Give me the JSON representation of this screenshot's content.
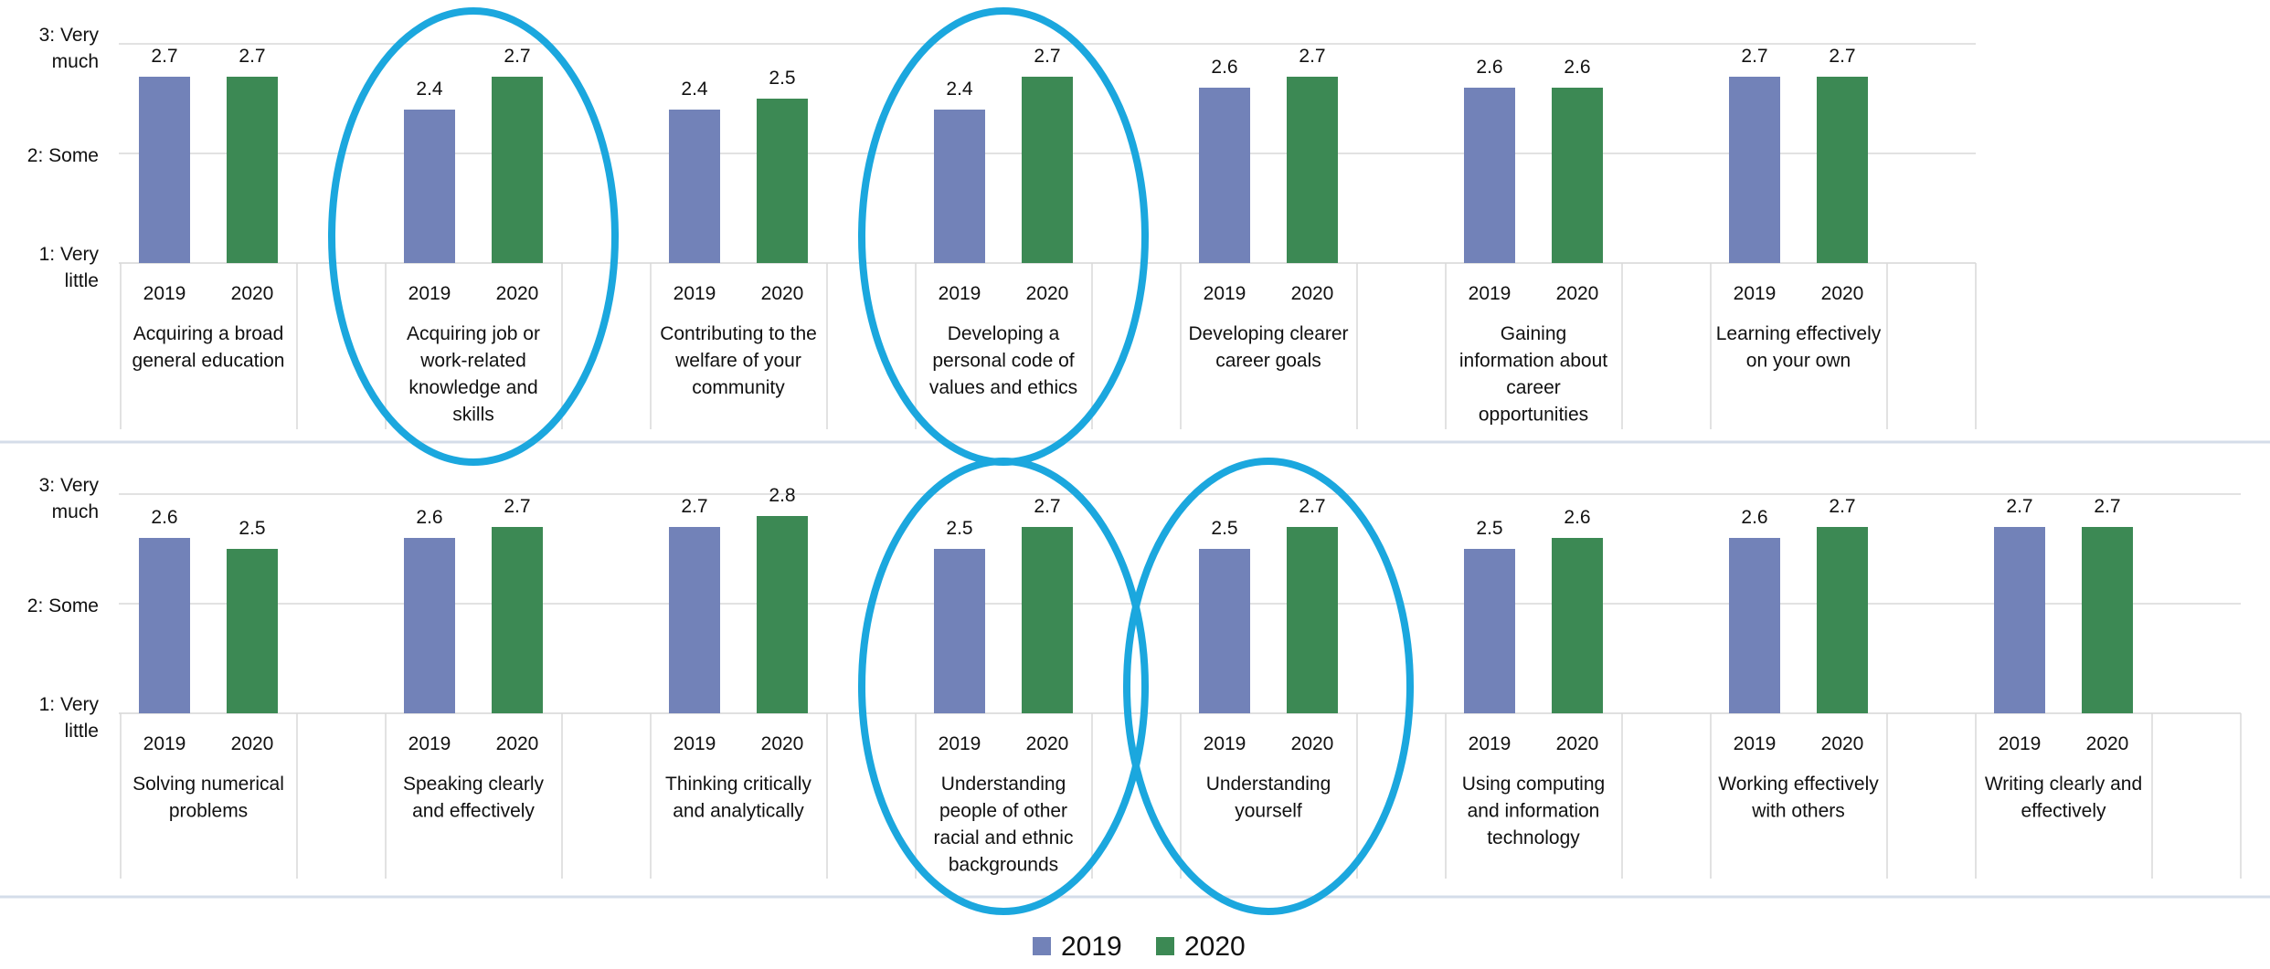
{
  "y_axis": {
    "ticks": [
      {
        "value": 3,
        "lines": [
          "3: Very",
          "much"
        ]
      },
      {
        "value": 2,
        "lines": [
          "2: Some"
        ]
      },
      {
        "value": 1,
        "lines": [
          "1: Very",
          "little"
        ]
      }
    ]
  },
  "legend": {
    "position": "bottom-center",
    "items": [
      {
        "label": "2019",
        "color": "#7282B8"
      },
      {
        "label": "2020",
        "color": "#3C8954"
      }
    ]
  },
  "highlight_color": "#1BA7DE",
  "chart_data": [
    {
      "type": "bar",
      "row": 1,
      "ylim": [
        1,
        3
      ],
      "grid": true,
      "years": [
        "2019",
        "2020"
      ],
      "groups": [
        {
          "label_lines": [
            "Acquiring a broad",
            "general education"
          ],
          "values": [
            2.7,
            2.7
          ],
          "data_labels": [
            "2.7",
            "2.7"
          ],
          "circled": false
        },
        {
          "label_lines": [
            "Acquiring job or",
            "work-related",
            "knowledge and",
            "skills"
          ],
          "values": [
            2.4,
            2.7
          ],
          "data_labels": [
            "2.4",
            "2.7"
          ],
          "circled": true
        },
        {
          "label_lines": [
            "Contributing to the",
            "welfare of your",
            "community"
          ],
          "values": [
            2.4,
            2.5
          ],
          "data_labels": [
            "2.4",
            "2.5"
          ],
          "circled": false
        },
        {
          "label_lines": [
            "Developing a",
            "personal code of",
            "values and ethics"
          ],
          "values": [
            2.4,
            2.7
          ],
          "data_labels": [
            "2.4",
            "2.7"
          ],
          "circled": true
        },
        {
          "label_lines": [
            "Developing clearer",
            "career goals"
          ],
          "values": [
            2.6,
            2.7
          ],
          "data_labels": [
            "2.6",
            "2.7"
          ],
          "circled": false
        },
        {
          "label_lines": [
            "Gaining",
            "information about",
            "career",
            "opportunities"
          ],
          "values": [
            2.6,
            2.6
          ],
          "data_labels": [
            "2.6",
            "2.6"
          ],
          "circled": false
        },
        {
          "label_lines": [
            "Learning effectively",
            "on your own"
          ],
          "values": [
            2.7,
            2.7
          ],
          "data_labels": [
            "2.7",
            "2.7"
          ],
          "circled": false
        }
      ]
    },
    {
      "type": "bar",
      "row": 2,
      "ylim": [
        1,
        3
      ],
      "grid": true,
      "years": [
        "2019",
        "2020"
      ],
      "groups": [
        {
          "label_lines": [
            "Solving numerical",
            "problems"
          ],
          "values": [
            2.6,
            2.5
          ],
          "data_labels": [
            "2.6",
            "2.5"
          ],
          "circled": false
        },
        {
          "label_lines": [
            "Speaking clearly",
            "and effectively"
          ],
          "values": [
            2.6,
            2.7
          ],
          "data_labels": [
            "2.6",
            "2.7"
          ],
          "circled": false
        },
        {
          "label_lines": [
            "Thinking critically",
            "and analytically"
          ],
          "values": [
            2.7,
            2.8
          ],
          "data_labels": [
            "2.7",
            "2.8"
          ],
          "circled": false
        },
        {
          "label_lines": [
            "Understanding",
            "people of other",
            "racial and ethnic",
            "backgrounds"
          ],
          "values": [
            2.5,
            2.7
          ],
          "data_labels": [
            "2.5",
            "2.7"
          ],
          "circled": true
        },
        {
          "label_lines": [
            "Understanding",
            "yourself"
          ],
          "values": [
            2.5,
            2.7
          ],
          "data_labels": [
            "2.5",
            "2.7"
          ],
          "circled": true
        },
        {
          "label_lines": [
            "Using computing",
            "and information",
            "technology"
          ],
          "values": [
            2.5,
            2.6
          ],
          "data_labels": [
            "2.5",
            "2.6"
          ],
          "circled": false
        },
        {
          "label_lines": [
            "Working effectively",
            "with others"
          ],
          "values": [
            2.6,
            2.7
          ],
          "data_labels": [
            "2.6",
            "2.7"
          ],
          "circled": false
        },
        {
          "label_lines": [
            "Writing clearly and",
            "effectively"
          ],
          "values": [
            2.7,
            2.7
          ],
          "data_labels": [
            "2.7",
            "2.7"
          ],
          "circled": false
        }
      ]
    }
  ]
}
